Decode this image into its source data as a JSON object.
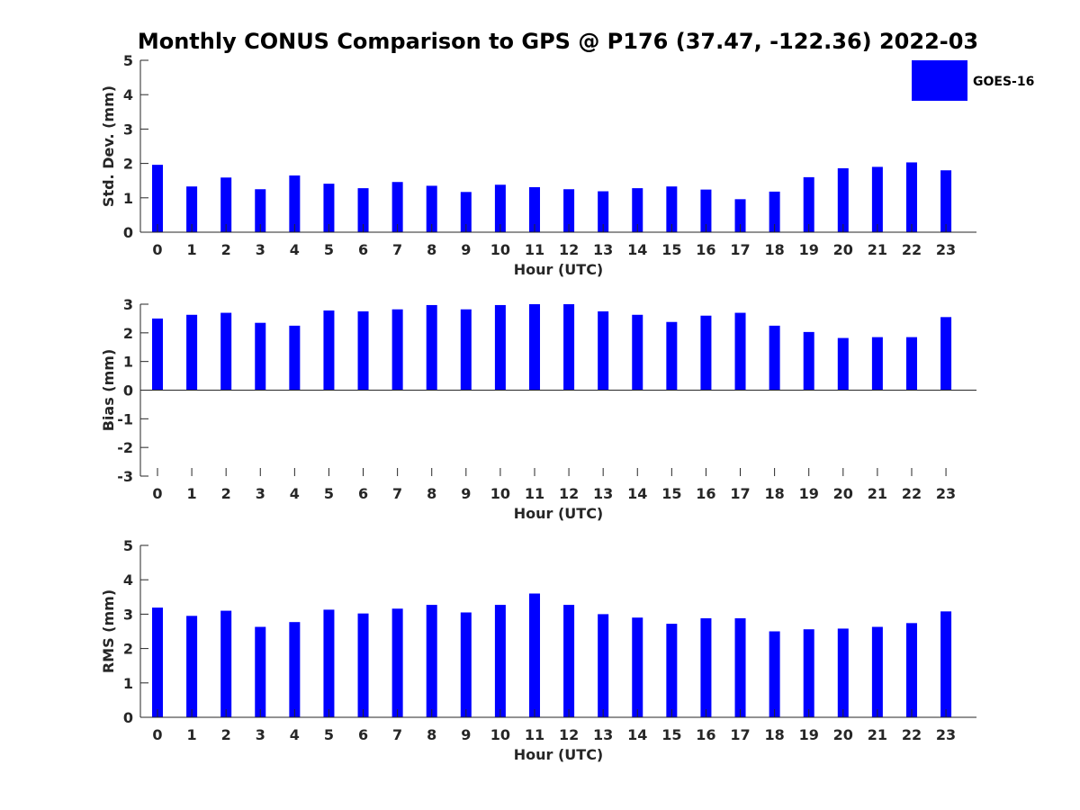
{
  "chart_data": [
    {
      "type": "bar",
      "title": "Monthly CONUS Comparison to GPS @ P176 (37.47, -122.36) 2022-03",
      "xlabel": "Hour (UTC)",
      "ylabel": "Std. Dev. (mm)",
      "ylim": [
        0,
        5
      ],
      "yticks": [
        0,
        1,
        2,
        3,
        4,
        5
      ],
      "categories": [
        "0",
        "1",
        "2",
        "3",
        "4",
        "5",
        "6",
        "7",
        "8",
        "9",
        "10",
        "11",
        "12",
        "13",
        "14",
        "15",
        "16",
        "17",
        "18",
        "19",
        "20",
        "21",
        "22",
        "23"
      ],
      "series": [
        {
          "name": "GOES-16",
          "color": "#0000ff",
          "values": [
            1.96,
            1.33,
            1.59,
            1.25,
            1.65,
            1.41,
            1.28,
            1.46,
            1.35,
            1.17,
            1.38,
            1.31,
            1.25,
            1.19,
            1.28,
            1.33,
            1.24,
            0.96,
            1.18,
            1.6,
            1.86,
            1.9,
            2.03,
            1.8
          ]
        }
      ],
      "legend_position": "top-right",
      "grid": false
    },
    {
      "type": "bar",
      "title": "",
      "xlabel": "Hour (UTC)",
      "ylabel": "Bias (mm)",
      "ylim": [
        -3,
        3
      ],
      "yticks": [
        -3,
        -2,
        -1,
        0,
        1,
        2,
        3
      ],
      "categories": [
        "0",
        "1",
        "2",
        "3",
        "4",
        "5",
        "6",
        "7",
        "8",
        "9",
        "10",
        "11",
        "12",
        "13",
        "14",
        "15",
        "16",
        "17",
        "18",
        "19",
        "20",
        "21",
        "22",
        "23"
      ],
      "series": [
        {
          "name": "GOES-16",
          "color": "#0000ff",
          "values": [
            2.5,
            2.63,
            2.7,
            2.35,
            2.25,
            2.78,
            2.75,
            2.82,
            2.97,
            2.82,
            2.97,
            3.0,
            3.0,
            2.75,
            2.63,
            2.38,
            2.6,
            2.7,
            2.25,
            2.03,
            1.82,
            1.85,
            1.85,
            2.55
          ]
        }
      ],
      "grid": false
    },
    {
      "type": "bar",
      "title": "",
      "xlabel": "Hour (UTC)",
      "ylabel": "RMS (mm)",
      "ylim": [
        0,
        5
      ],
      "yticks": [
        0,
        1,
        2,
        3,
        4,
        5
      ],
      "categories": [
        "0",
        "1",
        "2",
        "3",
        "4",
        "5",
        "6",
        "7",
        "8",
        "9",
        "10",
        "11",
        "12",
        "13",
        "14",
        "15",
        "16",
        "17",
        "18",
        "19",
        "20",
        "21",
        "22",
        "23"
      ],
      "series": [
        {
          "name": "GOES-16",
          "color": "#0000ff",
          "values": [
            3.19,
            2.95,
            3.1,
            2.63,
            2.77,
            3.13,
            3.02,
            3.16,
            3.27,
            3.05,
            3.27,
            3.6,
            3.27,
            3.0,
            2.9,
            2.72,
            2.88,
            2.88,
            2.5,
            2.56,
            2.58,
            2.63,
            2.74,
            3.08
          ]
        }
      ],
      "grid": false
    }
  ]
}
